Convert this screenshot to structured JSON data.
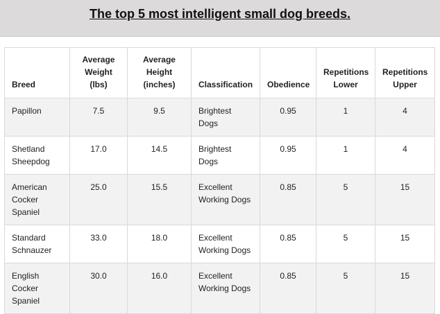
{
  "title": "The top 5 most intelligent small dog breeds.",
  "columns": {
    "breed": "Breed",
    "weight": "Average Weight (lbs)",
    "height": "Average Height (inches)",
    "classification": "Classification",
    "obedience": "Obedience",
    "rep_lower": "Repetitions Lower",
    "rep_upper": "Repetitions Upper"
  },
  "rows": [
    {
      "breed": "Papillon",
      "weight": "7.5",
      "height": "9.5",
      "classification": "Brightest Dogs",
      "obedience": "0.95",
      "rep_lower": "1",
      "rep_upper": "4"
    },
    {
      "breed": "Shetland Sheepdog",
      "weight": "17.0",
      "height": "14.5",
      "classification": "Brightest Dogs",
      "obedience": "0.95",
      "rep_lower": "1",
      "rep_upper": "4"
    },
    {
      "breed": "American Cocker Spaniel",
      "weight": "25.0",
      "height": "15.5",
      "classification": "Excellent Working Dogs",
      "obedience": "0.85",
      "rep_lower": "5",
      "rep_upper": "15"
    },
    {
      "breed": "Standard Schnauzer",
      "weight": "33.0",
      "height": "18.0",
      "classification": "Excellent Working Dogs",
      "obedience": "0.85",
      "rep_lower": "5",
      "rep_upper": "15"
    },
    {
      "breed": "English Cocker Spaniel",
      "weight": "30.0",
      "height": "16.0",
      "classification": "Excellent Working Dogs",
      "obedience": "0.85",
      "rep_lower": "5",
      "rep_upper": "15"
    }
  ]
}
